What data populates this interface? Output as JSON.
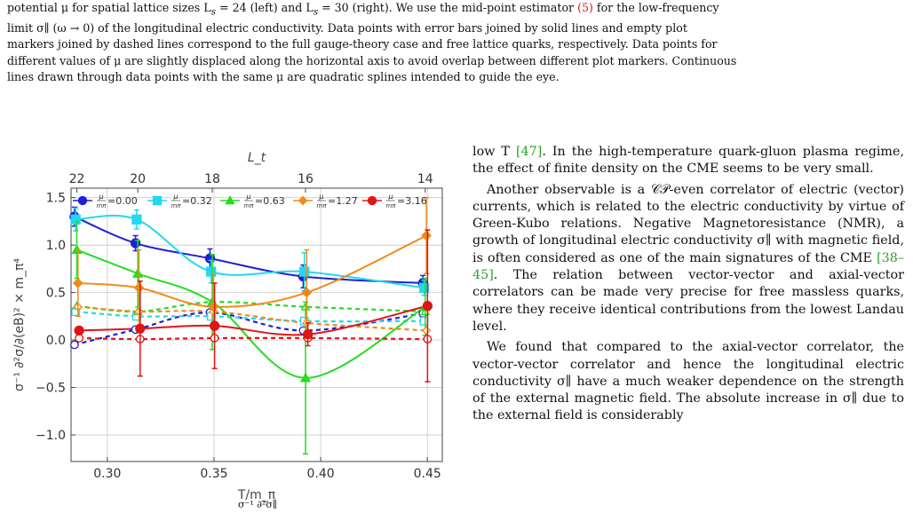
{
  "caption": {
    "line1": "potential μ for spatial lattice sizes L",
    "line1b": " = 24 (left) and L",
    "line1c": " = 30 (right). We use the mid-point estimator ",
    "ref5": "(5)",
    "line1d": " for the low-frequency",
    "line2": "limit σ∥ (ω → 0) of the longitudinal electric conductivity. Data points with error bars joined by solid lines and empty plot",
    "line3": "markers joined by dashed lines correspond to the full gauge-theory case and free lattice quarks, respectively. Data points for",
    "line4": "different values of μ are slightly displaced along the horizontal axis to avoid overlap between different plot markers. Continuous",
    "line5": "lines drawn through data points with the same μ are quadratic splines intended to guide the eye."
  },
  "body": {
    "p1_a": "low T ",
    "p1_cite": "[47]",
    "p1_b": ". In the high-temperature quark-gluon plasma regime, the effect of finite density on the CME seems to be very small.",
    "p2_a": "Another observable is a 𝒞𝒫-even correlator of electric (vector) currents, which is related to the electric conductivity by virtue of Green-Kubo relations. Negative Magnetoresistance (NMR), a growth of longitudinal electric conductivity σ∥ with magnetic field, is often considered as one of the main signatures of the CME ",
    "p2_cite": "[38–45]",
    "p2_b": ". The relation between vector-vector and axial-vector correlators can be made very precise for free massless quarks, where they receive identical contributions from the lowest Landau level.",
    "p3": "We found that compared to the axial-vector correlator, the vector-vector correlator and hence the longitudinal electric conductivity σ∥ have a much weaker dependence on the strength of the external magnetic field. The absolute increase in σ∥ due to the external field is considerably"
  },
  "chart_data": {
    "type": "line",
    "top_axis_label": "L_t",
    "top_ticks": [
      22,
      20,
      18,
      16,
      14
    ],
    "xlabel": "T/m_π",
    "ylabel": "σ⁻¹ ∂²σ/∂(eB)² × m_π⁴",
    "xlim": [
      0.283,
      0.457
    ],
    "ylim": [
      -1.28,
      1.6
    ],
    "xticks": [
      0.3,
      0.35,
      0.4,
      0.45
    ],
    "xtick_labels": [
      "0.30",
      "0.35",
      "0.40",
      "0.45"
    ],
    "yticks": [
      -1.0,
      -0.5,
      0.0,
      0.5,
      1.0,
      1.5
    ],
    "ytick_labels": [
      "−1.0",
      "−0.5",
      "0.0",
      "0.5",
      "1.0",
      "1.5"
    ],
    "grid": true,
    "legend_position": "top",
    "T_values": [
      0.2857,
      0.3143,
      0.3492,
      0.3929,
      0.449
    ],
    "series": [
      {
        "name": "=0.00",
        "color": "#1f1fd6",
        "marker": "circle",
        "full_y": [
          1.3,
          1.02,
          0.86,
          0.67,
          0.6
        ],
        "full_err": [
          0.1,
          0.08,
          0.1,
          0.12,
          0.08
        ],
        "free_y": [
          -0.05,
          0.11,
          0.29,
          0.1,
          0.28
        ]
      },
      {
        "name": "=0.32",
        "color": "#22d8f0",
        "marker": "square",
        "full_y": [
          1.27,
          1.27,
          0.72,
          0.72,
          0.55
        ],
        "full_err": [
          0.12,
          0.1,
          0.12,
          0.2,
          0.08
        ],
        "free_y": [
          0.3,
          0.25,
          0.25,
          0.2,
          0.2
        ]
      },
      {
        "name": "=0.63",
        "color": "#22dd22",
        "marker": "triangle",
        "full_y": [
          0.95,
          0.7,
          0.4,
          -0.4,
          0.35
        ],
        "full_err": [
          0.3,
          0.35,
          0.5,
          0.8,
          0.3
        ],
        "free_y": [
          0.36,
          0.3,
          0.4,
          0.35,
          0.3
        ]
      },
      {
        "name": "=1.27",
        "color": "#f08a1a",
        "marker": "diamond",
        "full_y": [
          0.6,
          0.55,
          0.35,
          0.5,
          1.1
        ],
        "full_err": [
          0.35,
          0.4,
          0.35,
          0.45,
          0.4
        ],
        "free_y": [
          0.35,
          0.3,
          0.3,
          0.18,
          0.1
        ]
      },
      {
        "name": "=3.16",
        "color": "#e01515",
        "marker": "circle",
        "full_y": [
          0.1,
          0.12,
          0.15,
          0.06,
          0.36
        ],
        "full_err": [
          0.0,
          0.5,
          0.45,
          0.12,
          0.8
        ],
        "free_y": [
          0.02,
          0.01,
          0.02,
          0.02,
          0.01
        ]
      }
    ]
  },
  "bottom_caption": "σ⁻¹ ∂²σ∥"
}
